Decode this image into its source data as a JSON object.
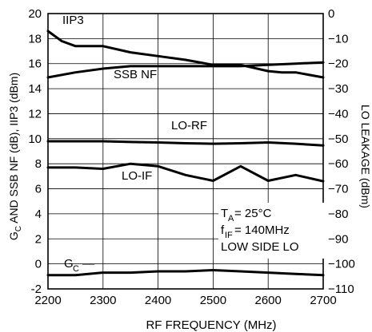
{
  "chart_data": {
    "type": "line",
    "title": "",
    "xlabel": "RF FREQUENCY (MHz)",
    "ylabel_left": "G_C AND SSB NF (dB), IIP3 (dBm)",
    "ylabel_left_parts": {
      "g": "G",
      "c": "C",
      "rest": " AND SSB NF (dB), IIP3 (dBm)"
    },
    "ylabel_right": "LO LEAKAGE (dBm)",
    "xlim": [
      2200,
      2700
    ],
    "ylim_left": [
      -2,
      20
    ],
    "ylim_right": [
      -110,
      0
    ],
    "x_ticks": [
      2200,
      2300,
      2400,
      2500,
      2600,
      2700
    ],
    "y_left_ticks": [
      -2,
      0,
      2,
      4,
      6,
      8,
      10,
      12,
      14,
      16,
      18,
      20
    ],
    "y_right_ticks": [
      -110,
      -100,
      -90,
      -80,
      -70,
      -60,
      -50,
      -40,
      -30,
      -20,
      -10,
      0
    ],
    "grid": true,
    "series": [
      {
        "name": "IIP3",
        "axis": "left",
        "x": [
          2200,
          2225,
          2250,
          2275,
          2300,
          2350,
          2400,
          2450,
          2500,
          2550,
          2600,
          2625,
          2650,
          2700
        ],
        "y": [
          18.6,
          17.8,
          17.4,
          17.4,
          17.4,
          16.9,
          16.6,
          16.3,
          15.9,
          15.9,
          15.4,
          15.3,
          15.3,
          14.9
        ]
      },
      {
        "name": "SSB NF",
        "axis": "left",
        "x": [
          2200,
          2250,
          2300,
          2350,
          2400,
          2450,
          2500,
          2550,
          2600,
          2650,
          2700
        ],
        "y": [
          14.9,
          15.3,
          15.6,
          15.8,
          15.8,
          15.8,
          15.8,
          15.8,
          15.9,
          16.0,
          16.1
        ]
      },
      {
        "name": "G_C",
        "axis": "left",
        "x": [
          2200,
          2250,
          2300,
          2350,
          2400,
          2450,
          2500,
          2550,
          2600,
          2650,
          2700
        ],
        "y": [
          -0.9,
          -0.9,
          -0.7,
          -0.7,
          -0.6,
          -0.6,
          -0.5,
          -0.6,
          -0.7,
          -0.8,
          -0.9
        ]
      },
      {
        "name": "LO-RF",
        "axis": "right",
        "x": [
          2200,
          2250,
          2300,
          2350,
          2400,
          2450,
          2500,
          2550,
          2600,
          2650,
          2700
        ],
        "y": [
          -51,
          -51,
          -51,
          -51.3,
          -51.5,
          -51.8,
          -52,
          -51.8,
          -51.5,
          -52,
          -52.7
        ]
      },
      {
        "name": "LO-IF",
        "axis": "right",
        "x": [
          2200,
          2250,
          2300,
          2350,
          2400,
          2450,
          2500,
          2550,
          2600,
          2650,
          2700
        ],
        "y": [
          -61.5,
          -61.5,
          -62,
          -60,
          -61,
          -64.5,
          -66.8,
          -61,
          -66.8,
          -64.5,
          -67
        ]
      }
    ],
    "annotations": {
      "ta_main": "T",
      "ta_sub": "A",
      "ta_rest": " = 25°C",
      "fif_main": "f",
      "fif_sub": "IF",
      "fif_rest": " = 140MHz",
      "lo_side": "LOW SIDE LO"
    },
    "series_labels": {
      "iip3": "IIP3",
      "ssbnf": "SSB NF",
      "lorf": "LO-RF",
      "loif": "LO-IF",
      "gc_main": "G",
      "gc_sub": "C"
    }
  }
}
